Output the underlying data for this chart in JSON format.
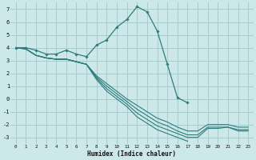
{
  "xlabel": "Humidex (Indice chaleur)",
  "bg_color": "#cce8e8",
  "grid_color": "#aacccc",
  "line_color": "#2e7d7d",
  "ylim": [
    -3.5,
    7.5
  ],
  "xlim": [
    -0.5,
    23.5
  ],
  "yticks": [
    -3,
    -2,
    -1,
    0,
    1,
    2,
    3,
    4,
    5,
    6,
    7
  ],
  "xticks": [
    0,
    1,
    2,
    3,
    4,
    5,
    6,
    7,
    8,
    9,
    10,
    11,
    12,
    13,
    14,
    15,
    16,
    17,
    18,
    19,
    20,
    21,
    22,
    23
  ],
  "lines": [
    {
      "x": [
        0,
        1,
        2,
        3,
        4,
        5,
        6,
        7,
        8,
        9,
        10,
        11,
        12,
        13,
        14,
        15,
        16,
        17
      ],
      "y": [
        4.0,
        4.0,
        3.8,
        3.5,
        3.5,
        3.8,
        3.5,
        3.3,
        4.2,
        4.6,
        5.6,
        6.2,
        7.2,
        6.8,
        5.3,
        2.7,
        0.1,
        -0.3
      ],
      "marker": true
    },
    {
      "x": [
        0,
        1,
        2,
        3,
        4,
        5,
        6,
        7,
        8,
        9,
        10,
        11,
        12,
        13,
        14,
        15,
        16,
        17,
        18,
        19,
        20,
        21,
        22,
        23
      ],
      "y": [
        4.0,
        3.9,
        3.4,
        3.2,
        3.1,
        3.1,
        2.9,
        2.7,
        1.8,
        1.2,
        0.6,
        0.0,
        -0.5,
        -1.0,
        -1.5,
        -1.8,
        -2.2,
        -2.5,
        -2.5,
        -2.0,
        -2.0,
        -2.0,
        -2.2,
        -2.2
      ],
      "marker": false
    },
    {
      "x": [
        0,
        1,
        2,
        3,
        4,
        5,
        6,
        7,
        8,
        9,
        10,
        11,
        12,
        13,
        14,
        15,
        16,
        17,
        18,
        19,
        20,
        21,
        22,
        23
      ],
      "y": [
        4.0,
        3.9,
        3.4,
        3.2,
        3.1,
        3.1,
        2.9,
        2.7,
        1.7,
        1.0,
        0.4,
        -0.2,
        -0.8,
        -1.3,
        -1.8,
        -2.1,
        -2.5,
        -2.8,
        -2.8,
        -2.2,
        -2.2,
        -2.2,
        -2.4,
        -2.4
      ],
      "marker": false
    },
    {
      "x": [
        0,
        1,
        2,
        3,
        4,
        5,
        6,
        7,
        8,
        9,
        10,
        11,
        12,
        13,
        14,
        15,
        16,
        17,
        18,
        19,
        20,
        21,
        22,
        23
      ],
      "y": [
        4.0,
        3.9,
        3.4,
        3.2,
        3.1,
        3.1,
        2.9,
        2.7,
        1.6,
        0.8,
        0.2,
        -0.4,
        -1.1,
        -1.6,
        -2.1,
        -2.4,
        -2.7,
        -3.0,
        -3.0,
        -2.3,
        -2.3,
        -2.2,
        -2.5,
        -2.5
      ],
      "marker": false
    },
    {
      "x": [
        0,
        1,
        2,
        3,
        4,
        5,
        6,
        7,
        8,
        9,
        10,
        11,
        12,
        13,
        14,
        15,
        16,
        17
      ],
      "y": [
        4.0,
        3.9,
        3.4,
        3.2,
        3.1,
        3.1,
        2.9,
        2.7,
        1.5,
        0.6,
        0.0,
        -0.6,
        -1.4,
        -1.9,
        -2.4,
        -2.7,
        -3.0,
        -3.3
      ],
      "marker": false
    }
  ]
}
